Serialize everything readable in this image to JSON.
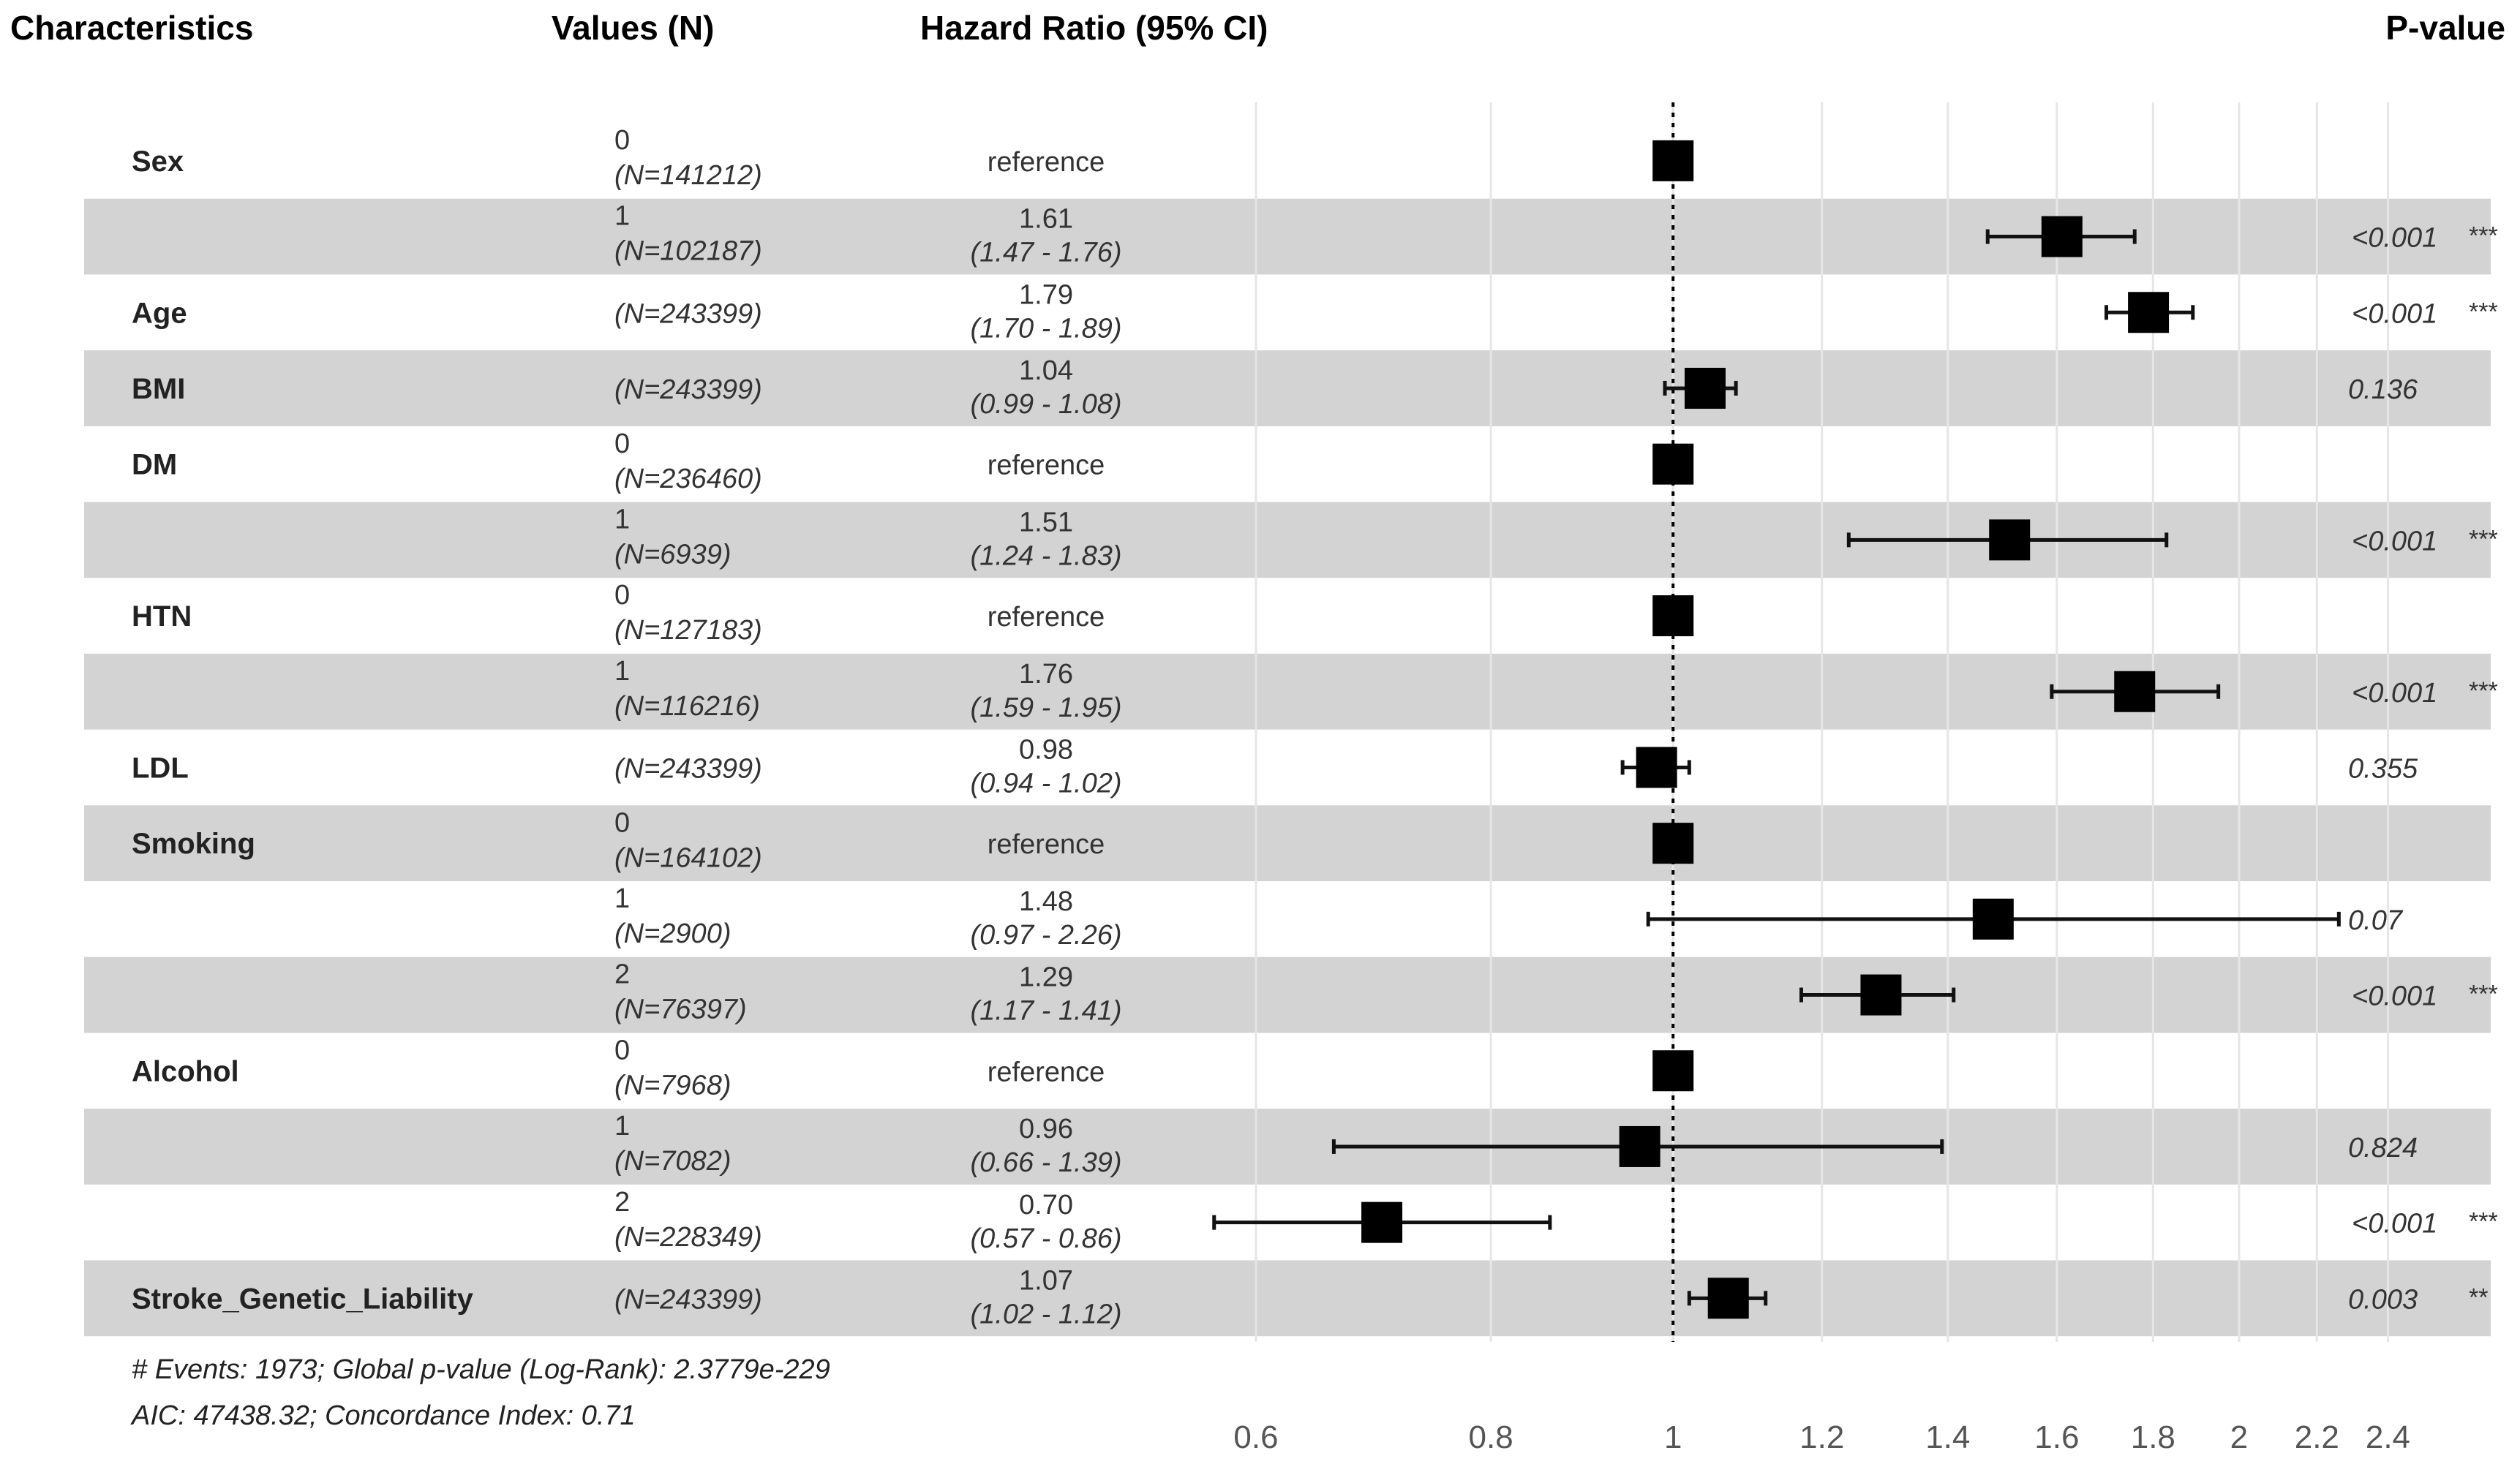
{
  "header": {
    "characteristics": "Characteristics",
    "values": "Values (N)",
    "hazard_ratio": "Hazard Ratio (95% CI)",
    "p_value": "P-value"
  },
  "footer": {
    "line1": "# Events: 1973; Global p-value (Log-Rank): 2.3779e-229",
    "line2": "AIC: 47438.32; Concordance Index: 0.71"
  },
  "chart_data": {
    "type": "forest",
    "x_scale": "log",
    "xlim": [
      0.56,
      2.5
    ],
    "reference_line": 1,
    "ticks": [
      0.6,
      0.8,
      1,
      1.2,
      1.4,
      1.6,
      1.8,
      2,
      2.2,
      2.4
    ],
    "tick_labels": [
      "0.6",
      "0.8",
      "1",
      "1.2",
      "1.4",
      "1.6",
      "1.8",
      "2",
      "2.2",
      "2.4"
    ],
    "rows": [
      {
        "variable": "Sex",
        "level": "0",
        "n": "(N=141212)",
        "hr": "reference",
        "ci": "",
        "p": "",
        "stars": "",
        "est": 1,
        "lo": null,
        "hi": null,
        "shaded": false
      },
      {
        "variable": "",
        "level": "1",
        "n": "(N=102187)",
        "hr": "1.61",
        "ci": "(1.47 - 1.76)",
        "p": "<0.001",
        "stars": "***",
        "est": 1.61,
        "lo": 1.47,
        "hi": 1.76,
        "shaded": true
      },
      {
        "variable": "Age",
        "level": "",
        "n": "(N=243399)",
        "hr": "1.79",
        "ci": "(1.70 - 1.89)",
        "p": "<0.001",
        "stars": "***",
        "est": 1.79,
        "lo": 1.7,
        "hi": 1.89,
        "shaded": false
      },
      {
        "variable": "BMI",
        "level": "",
        "n": "(N=243399)",
        "hr": "1.04",
        "ci": "(0.99 - 1.08)",
        "p": "0.136",
        "stars": "",
        "est": 1.04,
        "lo": 0.99,
        "hi": 1.08,
        "shaded": true
      },
      {
        "variable": "DM",
        "level": "0",
        "n": "(N=236460)",
        "hr": "reference",
        "ci": "",
        "p": "",
        "stars": "",
        "est": 1,
        "lo": null,
        "hi": null,
        "shaded": false
      },
      {
        "variable": "",
        "level": "1",
        "n": "(N=6939)",
        "hr": "1.51",
        "ci": "(1.24 - 1.83)",
        "p": "<0.001",
        "stars": "***",
        "est": 1.51,
        "lo": 1.24,
        "hi": 1.83,
        "shaded": true
      },
      {
        "variable": "HTN",
        "level": "0",
        "n": "(N=127183)",
        "hr": "reference",
        "ci": "",
        "p": "",
        "stars": "",
        "est": 1,
        "lo": null,
        "hi": null,
        "shaded": false
      },
      {
        "variable": "",
        "level": "1",
        "n": "(N=116216)",
        "hr": "1.76",
        "ci": "(1.59 - 1.95)",
        "p": "<0.001",
        "stars": "***",
        "est": 1.76,
        "lo": 1.59,
        "hi": 1.95,
        "shaded": true
      },
      {
        "variable": "LDL",
        "level": "",
        "n": "(N=243399)",
        "hr": "0.98",
        "ci": "(0.94 - 1.02)",
        "p": "0.355",
        "stars": "",
        "est": 0.98,
        "lo": 0.94,
        "hi": 1.02,
        "shaded": false
      },
      {
        "variable": "Smoking",
        "level": "0",
        "n": "(N=164102)",
        "hr": "reference",
        "ci": "",
        "p": "",
        "stars": "",
        "est": 1,
        "lo": null,
        "hi": null,
        "shaded": true
      },
      {
        "variable": "",
        "level": "1",
        "n": "(N=2900)",
        "hr": "1.48",
        "ci": "(0.97 - 2.26)",
        "p": "0.07",
        "stars": "",
        "est": 1.48,
        "lo": 0.97,
        "hi": 2.26,
        "shaded": false
      },
      {
        "variable": "",
        "level": "2",
        "n": "(N=76397)",
        "hr": "1.29",
        "ci": "(1.17 - 1.41)",
        "p": "<0.001",
        "stars": "***",
        "est": 1.29,
        "lo": 1.17,
        "hi": 1.41,
        "shaded": true
      },
      {
        "variable": "Alcohol",
        "level": "0",
        "n": "(N=7968)",
        "hr": "reference",
        "ci": "",
        "p": "",
        "stars": "",
        "est": 1,
        "lo": null,
        "hi": null,
        "shaded": false
      },
      {
        "variable": "",
        "level": "1",
        "n": "(N=7082)",
        "hr": "0.96",
        "ci": "(0.66 - 1.39)",
        "p": "0.824",
        "stars": "",
        "est": 0.96,
        "lo": 0.66,
        "hi": 1.39,
        "shaded": true
      },
      {
        "variable": "",
        "level": "2",
        "n": "(N=228349)",
        "hr": "0.70",
        "ci": "(0.57 - 0.86)",
        "p": "<0.001",
        "stars": "***",
        "est": 0.7,
        "lo": 0.57,
        "hi": 0.86,
        "shaded": false
      },
      {
        "variable": "Stroke_Genetic_Liability",
        "level": "",
        "n": "(N=243399)",
        "hr": "1.07",
        "ci": "(1.02 - 1.12)",
        "p": "0.003",
        "stars": "**",
        "est": 1.07,
        "lo": 1.02,
        "hi": 1.12,
        "shaded": true
      }
    ]
  }
}
